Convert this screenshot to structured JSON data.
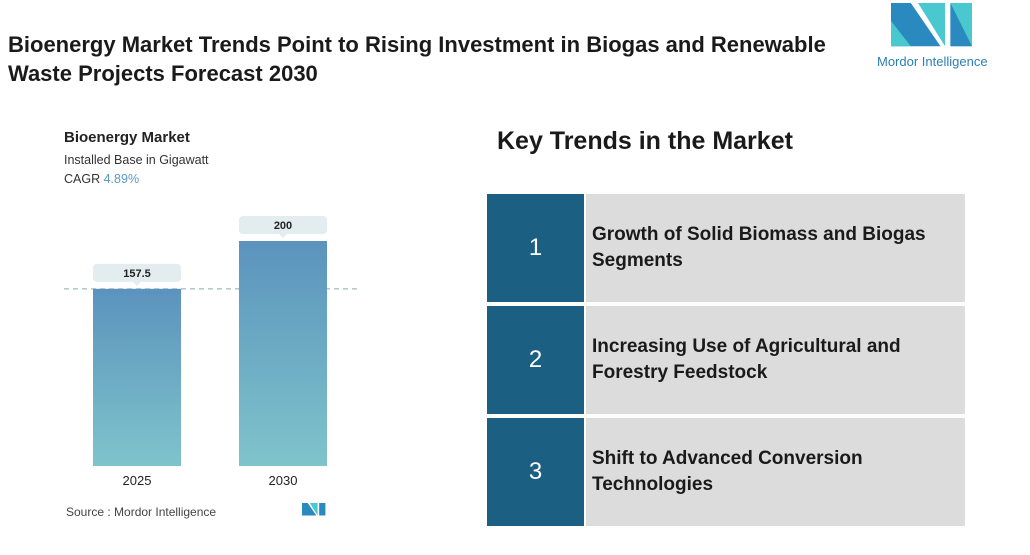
{
  "header": {
    "title": "Bioenergy Market Trends Point to Rising Investment in Biogas and Renewable Waste Projects Forecast 2030",
    "logo_text": "Mordor Intelligence"
  },
  "chart_data": {
    "type": "bar",
    "title": "Bioenergy Market",
    "subtitle": "Installed Base in Gigawatt",
    "cagr_label": "CAGR",
    "cagr_value": "4.89%",
    "categories": [
      "2025",
      "2030"
    ],
    "values": [
      157.5,
      200
    ],
    "value_labels": [
      "157.5",
      "200"
    ],
    "ylim": [
      0,
      200
    ],
    "grid": false,
    "colors": {
      "bar_top": "#5b93bd",
      "bar_bottom": "#7fc4cb",
      "label_bg": "#e3ecef",
      "dash": "#8aa8b8"
    }
  },
  "footer": {
    "source": "Source : Mordor Intelligence"
  },
  "trends": {
    "heading": "Key Trends in the Market",
    "items": [
      {
        "num": "1",
        "text": "Growth of Solid Biomass and Biogas Segments"
      },
      {
        "num": "2",
        "text": "Increasing Use of Agricultural and Forestry Feedstock"
      },
      {
        "num": "3",
        "text": "Shift to Advanced Conversion Technologies"
      }
    ]
  }
}
